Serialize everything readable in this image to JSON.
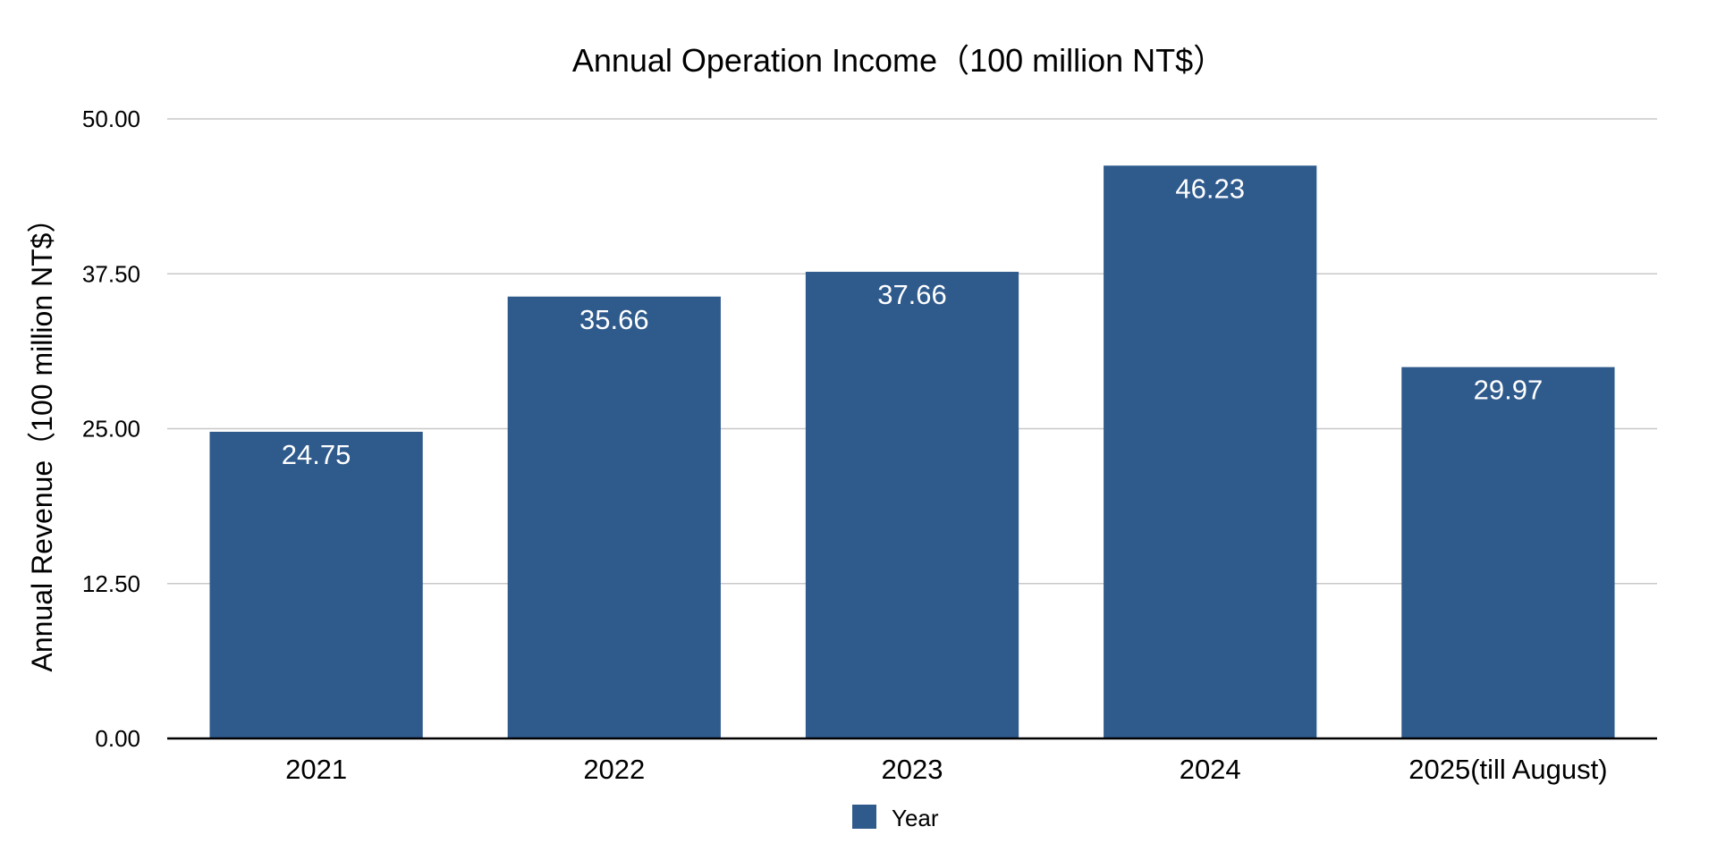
{
  "chart_data": {
    "type": "bar",
    "title": "Annual Operation Income（100 million NT$）",
    "xlabel": "",
    "ylabel": "Annual Revenue（100 million NT$）",
    "categories": [
      "2021",
      "2022",
      "2023",
      "2024",
      "2025(till August)"
    ],
    "series": [
      {
        "name": "Year",
        "values": [
          24.75,
          35.66,
          37.66,
          46.23,
          29.97
        ],
        "labels": [
          "24.75",
          "35.66",
          "37.66",
          "46.23",
          "29.97"
        ],
        "color": "#2f5a8c"
      }
    ],
    "ylim": [
      0,
      50
    ],
    "yticks": [
      0,
      12.5,
      25,
      37.5,
      50
    ],
    "ytick_labels": [
      "0.00",
      "12.50",
      "25.00",
      "37.50",
      "50.00"
    ],
    "grid": true,
    "legend_position": "bottom"
  }
}
